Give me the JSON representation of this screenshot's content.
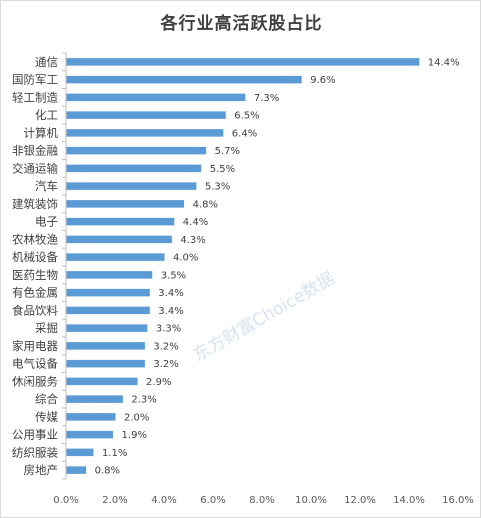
{
  "chart_data": {
    "type": "bar",
    "orientation": "horizontal",
    "title": "各行业高活跃股占比",
    "categories": [
      "通信",
      "国防军工",
      "轻工制造",
      "化工",
      "计算机",
      "非银金融",
      "交通运输",
      "汽车",
      "建筑装饰",
      "电子",
      "农林牧渔",
      "机械设备",
      "医药生物",
      "有色金属",
      "食品饮料",
      "采掘",
      "家用电器",
      "电气设备",
      "休闲服务",
      "综合",
      "传媒",
      "公用事业",
      "纺织服装",
      "房地产"
    ],
    "values": [
      14.4,
      9.6,
      7.3,
      6.5,
      6.4,
      5.7,
      5.5,
      5.3,
      4.8,
      4.4,
      4.3,
      4.0,
      3.5,
      3.4,
      3.4,
      3.3,
      3.2,
      3.2,
      2.9,
      2.3,
      2.0,
      1.9,
      1.1,
      0.8
    ],
    "value_labels": [
      "14.4%",
      "9.6%",
      "7.3%",
      "6.5%",
      "6.4%",
      "5.7%",
      "5.5%",
      "5.3%",
      "4.8%",
      "4.4%",
      "4.3%",
      "4.0%",
      "3.5%",
      "3.4%",
      "3.4%",
      "3.3%",
      "3.2%",
      "3.2%",
      "2.9%",
      "2.3%",
      "2.0%",
      "1.9%",
      "1.1%",
      "0.8%"
    ],
    "xlim": [
      0,
      16
    ],
    "x_ticks": [
      "0.0%",
      "2.0%",
      "4.0%",
      "6.0%",
      "8.0%",
      "10.0%",
      "12.0%",
      "14.0%",
      "16.0%"
    ],
    "grid": false,
    "legend": "none",
    "bar_color": "#5b9bd5"
  },
  "watermark": "东方财富Choice数据"
}
